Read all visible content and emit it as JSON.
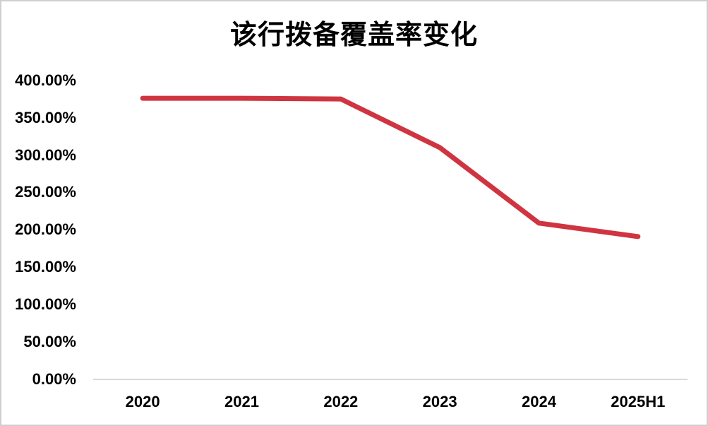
{
  "chart_data": {
    "type": "line",
    "title": "该行拨备覆盖率变化",
    "categories": [
      "2020",
      "2021",
      "2022",
      "2023",
      "2024",
      "2025H1"
    ],
    "values": [
      376,
      376,
      375,
      310,
      209,
      191
    ],
    "unit": "%",
    "y_ticks": [
      "400.00%",
      "350.00%",
      "300.00%",
      "250.00%",
      "200.00%",
      "150.00%",
      "100.00%",
      "50.00%",
      "0.00%"
    ],
    "ylim": [
      0,
      400
    ],
    "grid": false,
    "legend_position": "none",
    "line_color": "#cf3540",
    "axis_line_color": "#d9d9d9",
    "text_color": "#000000",
    "background_color": "#ffffff",
    "border_color": "#cfcfcf"
  }
}
